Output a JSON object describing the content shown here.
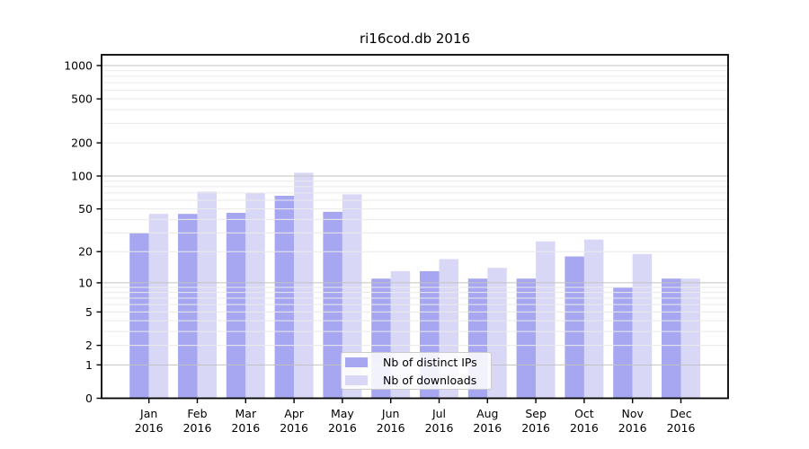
{
  "chart_data": {
    "type": "bar",
    "title": "ri16cod.db 2016",
    "categories": [
      "Jan",
      "Feb",
      "Mar",
      "Apr",
      "May",
      "Jun",
      "Jul",
      "Aug",
      "Sep",
      "Oct",
      "Nov",
      "Dec"
    ],
    "category_year": "2016",
    "series": [
      {
        "name": "Nb of distinct IPs",
        "color": "#a7a7f1",
        "values": [
          30,
          45,
          46,
          66,
          47,
          11,
          13,
          11,
          11,
          18,
          9,
          11
        ]
      },
      {
        "name": "Nb of downloads",
        "color": "#d8d8f6",
        "values": [
          45,
          72,
          70,
          107,
          68,
          13,
          17,
          14,
          25,
          26,
          19,
          11
        ]
      }
    ],
    "yscale": "log1p",
    "yticks": [
      0,
      1,
      2,
      5,
      10,
      20,
      50,
      100,
      200,
      500,
      1000
    ],
    "ylim": [
      0,
      1240
    ],
    "xlabel": "",
    "ylabel": "",
    "grid": "horizontal major and minor gridlines drawn over bars",
    "legend_position": "inside axes, lower center",
    "colors": {
      "major_gridline": "#c2c2c2",
      "minor_gridline": "#eaeaea",
      "axis": "#000000",
      "background": "#ffffff"
    }
  }
}
